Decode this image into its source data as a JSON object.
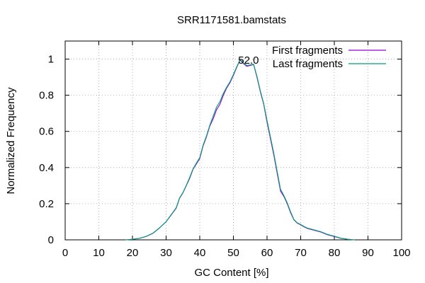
{
  "chart_data": {
    "type": "line",
    "title": "SRR1171581.bamstats",
    "xlabel": "GC Content [%]",
    "ylabel": "Normalized Frequency",
    "xlim": [
      0,
      100
    ],
    "ylim": [
      0,
      1.1
    ],
    "xticks": [
      0,
      10,
      20,
      30,
      40,
      50,
      60,
      70,
      80,
      90,
      100
    ],
    "yticks": [
      0,
      0.2,
      0.4,
      0.6,
      0.8,
      1
    ],
    "ytick_labels": [
      "0",
      "0.2",
      "0.4",
      "0.6",
      "0.8",
      "1"
    ],
    "grid": true,
    "legend_position": "top-right",
    "annotation": {
      "text": "52.0",
      "x": 54.5,
      "y": 0.975
    },
    "series": [
      {
        "name": "First fragments",
        "color": "#9400d3",
        "points": [
          [
            18,
            0
          ],
          [
            20,
            0.003
          ],
          [
            22,
            0.008
          ],
          [
            24,
            0.018
          ],
          [
            26,
            0.035
          ],
          [
            28,
            0.065
          ],
          [
            30,
            0.1
          ],
          [
            31,
            0.125
          ],
          [
            32,
            0.15
          ],
          [
            33,
            0.175
          ],
          [
            34,
            0.23
          ],
          [
            35,
            0.26
          ],
          [
            36,
            0.3
          ],
          [
            37,
            0.34
          ],
          [
            38,
            0.39
          ],
          [
            39,
            0.42
          ],
          [
            40,
            0.45
          ],
          [
            41,
            0.52
          ],
          [
            42,
            0.57
          ],
          [
            43,
            0.63
          ],
          [
            44,
            0.67
          ],
          [
            45,
            0.72
          ],
          [
            46,
            0.75
          ],
          [
            47,
            0.8
          ],
          [
            48,
            0.84
          ],
          [
            49,
            0.87
          ],
          [
            50,
            0.91
          ],
          [
            51,
            0.955
          ],
          [
            52,
            0.995
          ],
          [
            53,
            0.975
          ],
          [
            54,
            0.96
          ],
          [
            55,
            0.965
          ],
          [
            56,
            0.97
          ],
          [
            57,
            0.9
          ],
          [
            58,
            0.82
          ],
          [
            59,
            0.75
          ],
          [
            60,
            0.65
          ],
          [
            61,
            0.56
          ],
          [
            62,
            0.47
          ],
          [
            63,
            0.37
          ],
          [
            64,
            0.27
          ],
          [
            65,
            0.24
          ],
          [
            66,
            0.2
          ],
          [
            67,
            0.15
          ],
          [
            68,
            0.11
          ],
          [
            69,
            0.092
          ],
          [
            70,
            0.083
          ],
          [
            71,
            0.072
          ],
          [
            72,
            0.063
          ],
          [
            74,
            0.053
          ],
          [
            76,
            0.043
          ],
          [
            78,
            0.028
          ],
          [
            80,
            0.018
          ],
          [
            82,
            0.008
          ],
          [
            84,
            0.003
          ],
          [
            86,
            0
          ]
        ]
      },
      {
        "name": "Last fragments",
        "color": "#009e73",
        "points": [
          [
            18,
            0
          ],
          [
            20,
            0.003
          ],
          [
            22,
            0.008
          ],
          [
            24,
            0.019
          ],
          [
            26,
            0.036
          ],
          [
            28,
            0.066
          ],
          [
            30,
            0.1
          ],
          [
            31,
            0.127
          ],
          [
            32,
            0.152
          ],
          [
            33,
            0.178
          ],
          [
            34,
            0.232
          ],
          [
            35,
            0.262
          ],
          [
            36,
            0.302
          ],
          [
            37,
            0.345
          ],
          [
            38,
            0.393
          ],
          [
            39,
            0.425
          ],
          [
            40,
            0.455
          ],
          [
            41,
            0.525
          ],
          [
            42,
            0.575
          ],
          [
            43,
            0.635
          ],
          [
            44,
            0.685
          ],
          [
            45,
            0.735
          ],
          [
            46,
            0.765
          ],
          [
            47,
            0.81
          ],
          [
            48,
            0.845
          ],
          [
            49,
            0.875
          ],
          [
            50,
            0.915
          ],
          [
            51,
            0.958
          ],
          [
            52,
            0.998
          ],
          [
            53,
            0.978
          ],
          [
            54,
            0.965
          ],
          [
            55,
            0.968
          ],
          [
            56,
            0.972
          ],
          [
            57,
            0.905
          ],
          [
            58,
            0.825
          ],
          [
            59,
            0.755
          ],
          [
            60,
            0.66
          ],
          [
            61,
            0.57
          ],
          [
            62,
            0.48
          ],
          [
            63,
            0.38
          ],
          [
            64,
            0.28
          ],
          [
            65,
            0.245
          ],
          [
            66,
            0.205
          ],
          [
            67,
            0.155
          ],
          [
            68,
            0.112
          ],
          [
            69,
            0.094
          ],
          [
            70,
            0.085
          ],
          [
            71,
            0.074
          ],
          [
            72,
            0.065
          ],
          [
            74,
            0.055
          ],
          [
            76,
            0.045
          ],
          [
            78,
            0.03
          ],
          [
            80,
            0.02
          ],
          [
            82,
            0.009
          ],
          [
            84,
            0.003
          ],
          [
            86,
            0
          ]
        ]
      }
    ]
  }
}
